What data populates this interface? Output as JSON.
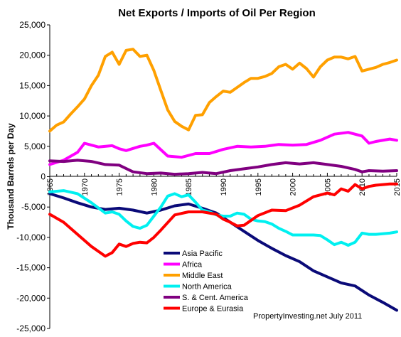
{
  "chart_data": {
    "type": "line",
    "title": "Net Exports / Imports of Oil Per Region",
    "ylabel": "Thousand Barrels per Day",
    "xlabel": "",
    "xlim": [
      1965,
      2015
    ],
    "ylim": [
      -25000,
      25000
    ],
    "y_ticks": [
      25000,
      20000,
      15000,
      10000,
      5000,
      0,
      -5000,
      -10000,
      -15000,
      -20000,
      -25000
    ],
    "y_tick_labels": [
      "25,000",
      "20,000",
      "15,000",
      "10,000",
      "5,000",
      "0",
      "-5,000",
      "-10,000",
      "-15,000",
      "-20,000",
      "-25,000"
    ],
    "x_ticks": [
      1965,
      1970,
      1975,
      1980,
      1985,
      1990,
      1995,
      2000,
      2005,
      2010,
      2015
    ],
    "x_tick_labels": [
      "1965",
      "1970",
      "1975",
      "1980",
      "1985",
      "1990",
      "1995",
      "2000",
      "2005",
      "2010",
      "2015"
    ],
    "grid": false,
    "legend_position": "bottom-center",
    "series": [
      {
        "name": "Asia Pacific",
        "color": "#0a0a78",
        "x": [
          1965,
          1967,
          1969,
          1971,
          1973,
          1975,
          1977,
          1979,
          1981,
          1983,
          1985,
          1987,
          1989,
          1991,
          1993,
          1995,
          1997,
          1999,
          2001,
          2003,
          2005,
          2007,
          2009,
          2011,
          2013,
          2015
        ],
        "y": [
          -2800,
          -3500,
          -4300,
          -5000,
          -5400,
          -5200,
          -5500,
          -6000,
          -5500,
          -4800,
          -4500,
          -5200,
          -6000,
          -7500,
          -9000,
          -10500,
          -11800,
          -13000,
          -14000,
          -15500,
          -16500,
          -17500,
          -18000,
          -19500,
          -20700,
          -22000
        ]
      },
      {
        "name": "Africa",
        "color": "#ff00ff",
        "x": [
          1965,
          1967,
          1969,
          1970,
          1972,
          1974,
          1975,
          1976,
          1978,
          1979,
          1980,
          1982,
          1984,
          1986,
          1988,
          1990,
          1992,
          1994,
          1996,
          1998,
          2000,
          2002,
          2004,
          2006,
          2008,
          2010,
          2011,
          2012,
          2014,
          2015
        ],
        "y": [
          2000,
          2700,
          4000,
          5500,
          4900,
          5100,
          4600,
          4300,
          5000,
          5200,
          5500,
          3400,
          3200,
          3800,
          3800,
          4500,
          5000,
          4900,
          5000,
          5300,
          5200,
          5300,
          6000,
          7000,
          7300,
          6700,
          5500,
          5800,
          6200,
          6000
        ]
      },
      {
        "name": "Middle East",
        "color": "#ffa000",
        "x": [
          1965,
          1966,
          1967,
          1968,
          1969,
          1970,
          1971,
          1972,
          1973,
          1974,
          1975,
          1976,
          1977,
          1978,
          1979,
          1980,
          1981,
          1982,
          1983,
          1984,
          1985,
          1986,
          1987,
          1988,
          1989,
          1990,
          1991,
          1992,
          1993,
          1994,
          1995,
          1996,
          1997,
          1998,
          1999,
          2000,
          2001,
          2002,
          2003,
          2004,
          2005,
          2006,
          2007,
          2008,
          2009,
          2010,
          2011,
          2012,
          2013,
          2014,
          2015
        ],
        "y": [
          7500,
          8500,
          9000,
          10300,
          11500,
          12800,
          15000,
          16700,
          19800,
          20500,
          18500,
          20800,
          21000,
          19800,
          20000,
          17500,
          14200,
          11000,
          9100,
          8300,
          7700,
          10100,
          10200,
          12200,
          13200,
          14100,
          13900,
          14700,
          15500,
          16200,
          16200,
          16500,
          17000,
          18100,
          18500,
          17700,
          18700,
          17800,
          16400,
          18100,
          19200,
          19700,
          19700,
          19400,
          19800,
          17400,
          17700,
          18000,
          18500,
          18800,
          19200
        ]
      },
      {
        "name": "North America",
        "color": "#00f0f0",
        "x": [
          1965,
          1967,
          1969,
          1971,
          1973,
          1974,
          1975,
          1976,
          1977,
          1978,
          1979,
          1980,
          1981,
          1982,
          1983,
          1984,
          1985,
          1986,
          1987,
          1988,
          1989,
          1990,
          1991,
          1992,
          1993,
          1994,
          1995,
          1996,
          1997,
          1998,
          1999,
          2000,
          2001,
          2002,
          2003,
          2004,
          2005,
          2006,
          2007,
          2008,
          2009,
          2010,
          2011,
          2012,
          2013,
          2014,
          2015
        ],
        "y": [
          -2500,
          -2300,
          -2800,
          -4300,
          -6000,
          -5800,
          -6200,
          -7300,
          -8200,
          -8500,
          -8000,
          -6500,
          -5000,
          -3200,
          -2800,
          -3300,
          -3000,
          -4200,
          -5500,
          -5800,
          -6300,
          -6500,
          -6500,
          -6000,
          -6200,
          -7000,
          -7300,
          -7400,
          -7800,
          -8500,
          -9000,
          -9600,
          -9600,
          -9600,
          -9600,
          -9700,
          -10400,
          -11200,
          -10800,
          -11300,
          -10800,
          -9300,
          -9500,
          -9500,
          -9400,
          -9300,
          -9100
        ]
      },
      {
        "name": "S. & Cent. America",
        "color": "#800080",
        "x": [
          1965,
          1967,
          1969,
          1971,
          1973,
          1975,
          1977,
          1979,
          1981,
          1983,
          1985,
          1987,
          1989,
          1991,
          1993,
          1995,
          1997,
          1999,
          2001,
          2003,
          2005,
          2007,
          2009,
          2010,
          2011,
          2013,
          2015
        ],
        "y": [
          2600,
          2500,
          2700,
          2500,
          2000,
          1900,
          800,
          500,
          600,
          400,
          500,
          700,
          500,
          1000,
          1300,
          1600,
          2000,
          2300,
          2100,
          2300,
          2000,
          1700,
          1200,
          800,
          1000,
          900,
          1000
        ]
      },
      {
        "name": "Europe & Eurasia",
        "color": "#ff0000",
        "x": [
          1965,
          1967,
          1969,
          1971,
          1972,
          1973,
          1974,
          1975,
          1976,
          1977,
          1978,
          1979,
          1980,
          1981,
          1983,
          1985,
          1987,
          1989,
          1990,
          1991,
          1992,
          1993,
          1995,
          1997,
          1999,
          2001,
          2003,
          2005,
          2006,
          2007,
          2008,
          2009,
          2010,
          2011,
          2012,
          2013,
          2014,
          2015
        ],
        "y": [
          -6200,
          -7500,
          -9500,
          -11500,
          -12300,
          -13100,
          -12500,
          -11100,
          -11500,
          -11000,
          -10800,
          -10900,
          -10000,
          -8800,
          -6300,
          -5800,
          -5800,
          -6200,
          -7000,
          -7500,
          -8100,
          -8000,
          -6400,
          -5500,
          -5600,
          -4700,
          -3300,
          -2700,
          -3000,
          -2000,
          -2400,
          -1300,
          -2000,
          -1600,
          -1400,
          -1300,
          -1200,
          -1200
        ]
      }
    ],
    "annotations": [
      "PropertyInvesting.net  July 2011"
    ]
  }
}
